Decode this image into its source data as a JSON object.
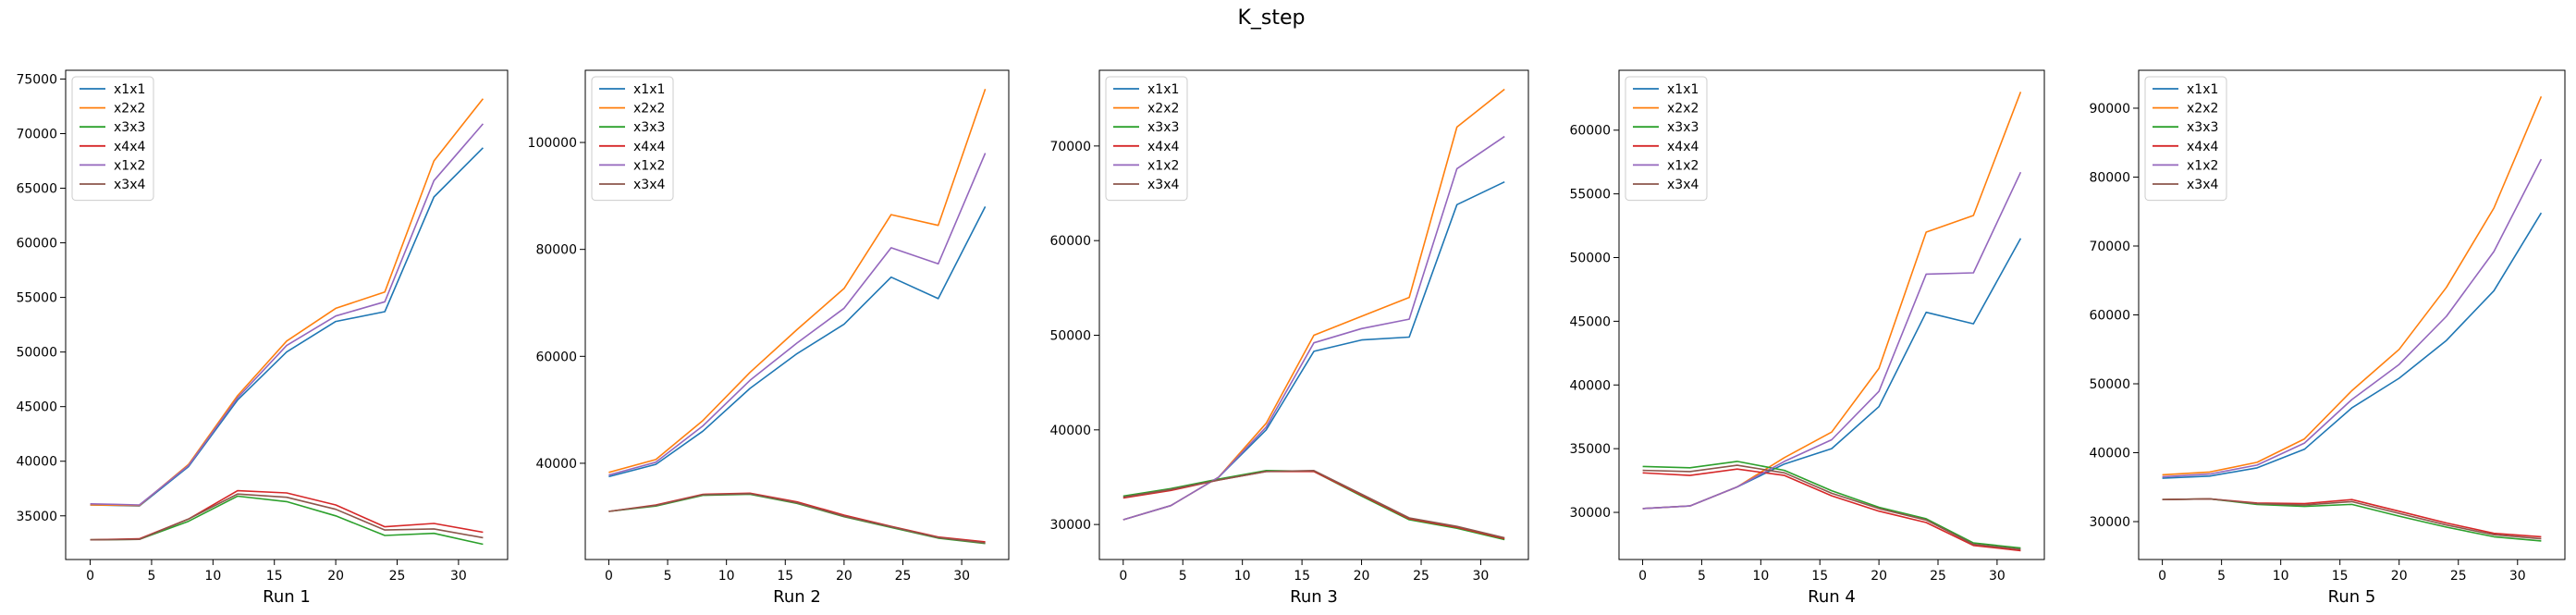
{
  "title": "K_step",
  "colors": {
    "x1x1": "#1f77b4",
    "x2x2": "#ff7f0e",
    "x3x3": "#2ca02c",
    "x4x4": "#d62728",
    "x1x2": "#9467bd",
    "x3x4": "#8c564b"
  },
  "chart_data": [
    {
      "type": "line",
      "xlabel": "Run 1",
      "x": [
        0,
        4,
        8,
        12,
        16,
        20,
        24,
        28,
        32
      ],
      "xlim": [
        -2,
        34
      ],
      "ylim": [
        31000,
        75800
      ],
      "yticks": [
        35000,
        40000,
        45000,
        50000,
        55000,
        60000,
        65000,
        70000,
        75000
      ],
      "xticks": [
        0,
        5,
        10,
        15,
        20,
        25,
        30
      ],
      "legend": "top-left",
      "series": [
        {
          "name": "x1x1",
          "values": [
            36000,
            35900,
            39500,
            45600,
            50000,
            52800,
            53700,
            64200,
            68700
          ]
        },
        {
          "name": "x2x2",
          "values": [
            36000,
            35950,
            39700,
            46000,
            51000,
            54000,
            55500,
            67500,
            73200
          ]
        },
        {
          "name": "x3x3",
          "values": [
            32800,
            32850,
            34500,
            36800,
            36300,
            35000,
            33200,
            33400,
            32400
          ]
        },
        {
          "name": "x4x4",
          "values": [
            32800,
            32900,
            34700,
            37300,
            37100,
            36000,
            34000,
            34300,
            33500
          ]
        },
        {
          "name": "x1x2",
          "values": [
            36100,
            36000,
            39600,
            45800,
            50600,
            53300,
            54600,
            65700,
            70900
          ]
        },
        {
          "name": "x3x4",
          "values": [
            32800,
            32850,
            34700,
            37000,
            36700,
            35600,
            33700,
            33800,
            33000
          ]
        }
      ]
    },
    {
      "type": "line",
      "xlabel": "Run 2",
      "x": [
        0,
        4,
        8,
        12,
        16,
        20,
        24,
        28,
        32
      ],
      "xlim": [
        -2,
        34
      ],
      "ylim": [
        22000,
        113500
      ],
      "yticks": [
        40000,
        60000,
        80000,
        100000
      ],
      "xticks": [
        0,
        5,
        10,
        15,
        20,
        25,
        30
      ],
      "legend": "top-left",
      "series": [
        {
          "name": "x1x1",
          "values": [
            37500,
            39800,
            46000,
            54000,
            60500,
            66000,
            74800,
            70800,
            88000
          ]
        },
        {
          "name": "x2x2",
          "values": [
            38300,
            40700,
            48000,
            57000,
            65000,
            72700,
            86500,
            84500,
            110000
          ]
        },
        {
          "name": "x3x3",
          "values": [
            31000,
            32000,
            34000,
            34200,
            32500,
            30000,
            28000,
            26000,
            25000
          ]
        },
        {
          "name": "x4x4",
          "values": [
            31000,
            32200,
            34200,
            34400,
            32800,
            30300,
            28200,
            26200,
            25300
          ]
        },
        {
          "name": "x1x2",
          "values": [
            37800,
            40200,
            47000,
            55500,
            62500,
            69000,
            80300,
            77300,
            98000
          ]
        },
        {
          "name": "x3x4",
          "values": [
            31000,
            32100,
            34100,
            34300,
            32600,
            30100,
            28100,
            26100,
            25100
          ]
        }
      ]
    },
    {
      "type": "line",
      "xlabel": "Run 3",
      "x": [
        0,
        4,
        8,
        12,
        16,
        20,
        24,
        28,
        32
      ],
      "xlim": [
        -2,
        34
      ],
      "ylim": [
        26300,
        78000
      ],
      "yticks": [
        30000,
        40000,
        50000,
        60000,
        70000
      ],
      "xticks": [
        0,
        5,
        10,
        15,
        20,
        25,
        30
      ],
      "legend": "top-left",
      "series": [
        {
          "name": "x1x1",
          "values": [
            30500,
            32000,
            35000,
            40000,
            48300,
            49500,
            49800,
            63800,
            66200
          ]
        },
        {
          "name": "x2x2",
          "values": [
            30500,
            32000,
            35000,
            40700,
            50000,
            52000,
            54000,
            72000,
            76000
          ]
        },
        {
          "name": "x3x3",
          "values": [
            33000,
            33800,
            34800,
            35700,
            35600,
            33000,
            30500,
            29600,
            28400
          ]
        },
        {
          "name": "x4x4",
          "values": [
            32800,
            33600,
            34700,
            35600,
            35600,
            33100,
            30600,
            29700,
            28500
          ]
        },
        {
          "name": "x1x2",
          "values": [
            30500,
            32000,
            35000,
            40300,
            49200,
            50700,
            51700,
            67600,
            71000
          ]
        },
        {
          "name": "x3x4",
          "values": [
            32900,
            33700,
            34700,
            35600,
            35700,
            33200,
            30700,
            29800,
            28600
          ]
        }
      ]
    },
    {
      "type": "line",
      "xlabel": "Run 4",
      "x": [
        0,
        4,
        8,
        12,
        16,
        20,
        24,
        28,
        32
      ],
      "xlim": [
        -2,
        34
      ],
      "ylim": [
        26300,
        64700
      ],
      "yticks": [
        30000,
        35000,
        40000,
        45000,
        50000,
        55000,
        60000
      ],
      "xticks": [
        0,
        5,
        10,
        15,
        20,
        25,
        30
      ],
      "legend": "top-left",
      "series": [
        {
          "name": "x1x1",
          "values": [
            30300,
            30500,
            32000,
            33800,
            35000,
            38300,
            45700,
            44800,
            51500
          ]
        },
        {
          "name": "x2x2",
          "values": [
            30300,
            30500,
            32000,
            34300,
            36300,
            41300,
            52000,
            53300,
            63000
          ]
        },
        {
          "name": "x3x3",
          "values": [
            33600,
            33500,
            34000,
            33300,
            31700,
            30400,
            29500,
            27600,
            27200
          ]
        },
        {
          "name": "x4x4",
          "values": [
            33100,
            32900,
            33400,
            32900,
            31300,
            30100,
            29200,
            27400,
            27000
          ]
        },
        {
          "name": "x1x2",
          "values": [
            30300,
            30500,
            32000,
            34000,
            35700,
            39500,
            48700,
            48800,
            56700
          ]
        },
        {
          "name": "x3x4",
          "values": [
            33300,
            33200,
            33700,
            33100,
            31500,
            30300,
            29400,
            27500,
            27100
          ]
        }
      ]
    },
    {
      "type": "line",
      "xlabel": "Run 5",
      "x": [
        0,
        4,
        8,
        12,
        16,
        20,
        24,
        28,
        32
      ],
      "xlim": [
        -2,
        34
      ],
      "ylim": [
        24500,
        95500
      ],
      "yticks": [
        30000,
        40000,
        50000,
        60000,
        70000,
        80000,
        90000
      ],
      "xticks": [
        0,
        5,
        10,
        15,
        20,
        25,
        30
      ],
      "legend": "top-left",
      "series": [
        {
          "name": "x1x1",
          "values": [
            36300,
            36600,
            37800,
            40500,
            46500,
            50800,
            56300,
            63500,
            74800
          ]
        },
        {
          "name": "x2x2",
          "values": [
            36800,
            37200,
            38600,
            42000,
            49000,
            55000,
            64000,
            75500,
            91700
          ]
        },
        {
          "name": "x3x3",
          "values": [
            33200,
            33300,
            32500,
            32200,
            32500,
            30800,
            29200,
            27800,
            27200
          ]
        },
        {
          "name": "x4x4",
          "values": [
            33200,
            33300,
            32700,
            32600,
            33200,
            31500,
            29800,
            28300,
            27800
          ]
        },
        {
          "name": "x1x2",
          "values": [
            36500,
            36900,
            38200,
            41400,
            47700,
            52800,
            59800,
            69200,
            82600
          ]
        },
        {
          "name": "x3x4",
          "values": [
            33200,
            33300,
            32600,
            32400,
            32900,
            31200,
            29500,
            28100,
            27500
          ]
        }
      ]
    }
  ]
}
